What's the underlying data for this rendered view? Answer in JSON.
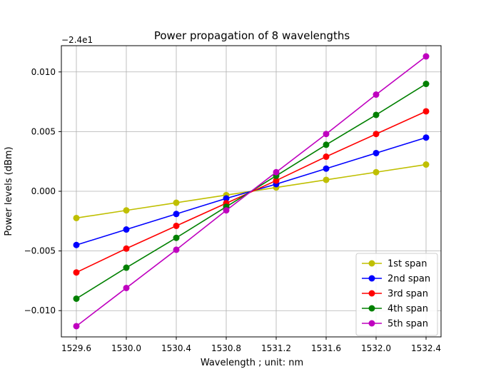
{
  "chart_data": {
    "type": "line",
    "title": "Power propagation of 8 wavelengths",
    "xlabel": "Wavelength ; unit: nm",
    "ylabel": "Power levels (dBm)",
    "offset_text": "−2.4e1",
    "x": [
      1529.6,
      1530.0,
      1530.4,
      1530.8,
      1531.2,
      1531.6,
      1532.0,
      1532.4
    ],
    "x_ticks": [
      "1529.6",
      "1530.0",
      "1530.4",
      "1530.8",
      "1531.2",
      "1531.6",
      "1532.0",
      "1532.4"
    ],
    "y_ticks": [
      "−0.010",
      "−0.005",
      "0.000",
      "0.005",
      "0.010"
    ],
    "xlim": [
      1529.48,
      1532.52
    ],
    "ylim": [
      -0.0122,
      0.0122
    ],
    "grid": true,
    "legend_position": "lower right",
    "series": [
      {
        "name": "1st span",
        "color": "#bfbf00",
        "values": [
          -0.00224,
          -0.0016,
          -0.00096,
          -0.00032,
          0.00032,
          0.00096,
          0.0016,
          0.00224
        ]
      },
      {
        "name": "2nd span",
        "color": "#0000ff",
        "values": [
          -0.0045,
          -0.0032,
          -0.0019,
          -0.0006,
          0.0006,
          0.0019,
          0.0032,
          0.0045
        ]
      },
      {
        "name": "3rd span",
        "color": "#ff0000",
        "values": [
          -0.0068,
          -0.0048,
          -0.0029,
          -0.001,
          0.0009,
          0.0029,
          0.0048,
          0.0067
        ]
      },
      {
        "name": "4th span",
        "color": "#008000",
        "values": [
          -0.009,
          -0.0064,
          -0.0039,
          -0.0013,
          0.0013,
          0.0039,
          0.0064,
          0.009
        ]
      },
      {
        "name": "5th span",
        "color": "#bf00bf",
        "values": [
          -0.0113,
          -0.0081,
          -0.0049,
          -0.0016,
          0.0016,
          0.0048,
          0.0081,
          0.0113
        ]
      }
    ]
  }
}
